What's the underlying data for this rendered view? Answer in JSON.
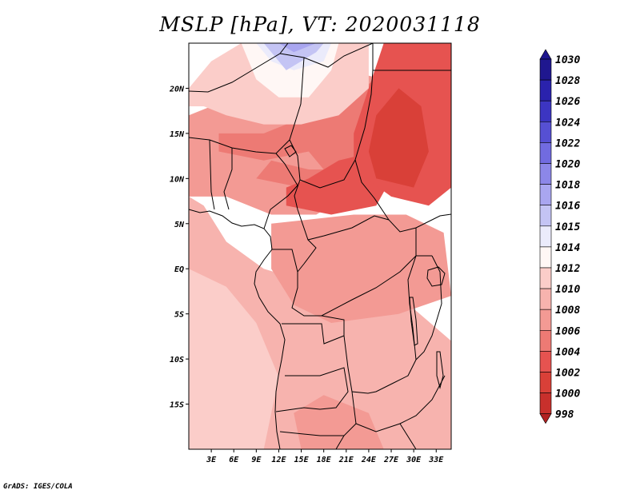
{
  "title": "MSLP [hPa], VT: 2020031118",
  "credit": "GrADS: IGES/COLA",
  "colors": {
    "998": "#b22222",
    "1000": "#c8302c",
    "1002": "#d94038",
    "1004": "#e65350",
    "1006": "#ed7a74",
    "1008": "#f39a94",
    "1010": "#f7b3ae",
    "1012": "#fbcdc9",
    "1014": "#fff7f5",
    "1015": "#ebebfb",
    "1016": "#c4c4f4",
    "1018": "#a9a6f0",
    "1020": "#8c87e8",
    "1022": "#716be0",
    "1024": "#5650d3",
    "1026": "#3c35c2",
    "1028": "#2a22ad",
    "1030": "#1f178f"
  },
  "chart_data": {
    "type": "heatmap",
    "title": "MSLP [hPa], VT: 2020031118",
    "variable": "MSLP",
    "units": "hPa",
    "valid_time": "2020031118",
    "lon_range": [
      0,
      35
    ],
    "lat_range": [
      -20,
      25
    ],
    "lat_ticks": [
      "20N",
      "15N",
      "10N",
      "5N",
      "EQ",
      "5S",
      "10S",
      "15S"
    ],
    "lon_ticks": [
      "3E",
      "6E",
      "9E",
      "12E",
      "15E",
      "18E",
      "21E",
      "24E",
      "27E",
      "30E",
      "33E"
    ],
    "colorbar_levels": [
      "1030",
      "1028",
      "1026",
      "1024",
      "1022",
      "1020",
      "1018",
      "1016",
      "1015",
      "1014",
      "1012",
      "1010",
      "1008",
      "1006",
      "1004",
      "1002",
      "1000",
      "998"
    ],
    "regions": [
      {
        "name": "southern-background",
        "level": 1010,
        "points": [
          [
            0,
            -20
          ],
          [
            35,
            -20
          ],
          [
            35,
            -8
          ],
          [
            28,
            -3
          ],
          [
            18,
            -2
          ],
          [
            10,
            0
          ],
          [
            5,
            3
          ],
          [
            2,
            7
          ],
          [
            0,
            8
          ]
        ]
      },
      {
        "name": "southwest-coast",
        "level": 1012,
        "points": [
          [
            0,
            -20
          ],
          [
            10,
            -20
          ],
          [
            12,
            -12
          ],
          [
            9,
            -6
          ],
          [
            5,
            -2
          ],
          [
            0,
            0
          ]
        ]
      },
      {
        "name": "namibia-interior",
        "level": 1008,
        "points": [
          [
            15,
            -20
          ],
          [
            26,
            -20
          ],
          [
            24,
            -16
          ],
          [
            18,
            -14
          ],
          [
            14,
            -16
          ]
        ]
      },
      {
        "name": "congo-basin",
        "level": 1008,
        "points": [
          [
            11,
            5
          ],
          [
            22,
            6
          ],
          [
            29,
            6
          ],
          [
            34,
            4
          ],
          [
            35,
            -3
          ],
          [
            28,
            -5
          ],
          [
            19,
            -6
          ],
          [
            14,
            -4
          ],
          [
            11,
            0
          ]
        ]
      },
      {
        "name": "west-africa",
        "level": 1008,
        "points": [
          [
            0,
            8
          ],
          [
            5,
            8
          ],
          [
            11,
            6
          ],
          [
            17,
            6
          ],
          [
            21,
            8
          ],
          [
            24,
            13
          ],
          [
            26,
            17
          ],
          [
            26,
            21
          ],
          [
            21,
            22
          ],
          [
            15,
            19
          ],
          [
            9,
            18
          ],
          [
            3,
            18
          ],
          [
            0,
            17
          ]
        ]
      },
      {
        "name": "sahel-band",
        "level": 1006,
        "points": [
          [
            4,
            13
          ],
          [
            10,
            12
          ],
          [
            16,
            13
          ],
          [
            20,
            9
          ],
          [
            23,
            12
          ],
          [
            26,
            16
          ],
          [
            27,
            20
          ],
          [
            25,
            21
          ],
          [
            21,
            19
          ],
          [
            16,
            17
          ],
          [
            10,
            15
          ],
          [
            4,
            15
          ]
        ]
      },
      {
        "name": "nigeria-chad",
        "level": 1006,
        "points": [
          [
            9,
            10
          ],
          [
            15,
            9
          ],
          [
            20,
            8
          ],
          [
            24,
            7
          ],
          [
            22,
            11
          ],
          [
            16,
            11
          ],
          [
            11,
            12
          ]
        ]
      },
      {
        "name": "car-south-sudan",
        "level": 1004,
        "points": [
          [
            13,
            7
          ],
          [
            19,
            6
          ],
          [
            25,
            7
          ],
          [
            27,
            10
          ],
          [
            25,
            13
          ],
          [
            20,
            12
          ],
          [
            16,
            10
          ],
          [
            13,
            9
          ]
        ]
      },
      {
        "name": "sudan",
        "level": 1004,
        "points": [
          [
            22,
            11
          ],
          [
            27,
            8
          ],
          [
            32,
            7
          ],
          [
            35,
            9
          ],
          [
            35,
            25
          ],
          [
            26,
            25
          ],
          [
            24,
            20
          ],
          [
            22,
            15
          ]
        ]
      },
      {
        "name": "sudan-core",
        "level": 1002,
        "points": [
          [
            25,
            10
          ],
          [
            30,
            9
          ],
          [
            32,
            13
          ],
          [
            31,
            18
          ],
          [
            28,
            20
          ],
          [
            25,
            17
          ],
          [
            24,
            13
          ]
        ]
      },
      {
        "name": "north-high-outer",
        "level": 1012,
        "points": [
          [
            0,
            20
          ],
          [
            3,
            23
          ],
          [
            7,
            25
          ],
          [
            24,
            25
          ],
          [
            24,
            20
          ],
          [
            20,
            17
          ],
          [
            15,
            16
          ],
          [
            10,
            16
          ],
          [
            5,
            17
          ],
          [
            2,
            18
          ],
          [
            0,
            18
          ]
        ]
      },
      {
        "name": "north-high-1014",
        "level": 1014,
        "points": [
          [
            7,
            25
          ],
          [
            20,
            25
          ],
          [
            19,
            22
          ],
          [
            16,
            19
          ],
          [
            12,
            19
          ],
          [
            9,
            21
          ]
        ]
      },
      {
        "name": "north-high-1015",
        "level": 1015,
        "points": [
          [
            9,
            25
          ],
          [
            19,
            25
          ],
          [
            18,
            23
          ],
          [
            14,
            22
          ],
          [
            11,
            23
          ]
        ]
      },
      {
        "name": "north-high-1016",
        "level": 1016,
        "points": [
          [
            10,
            25
          ],
          [
            18,
            25
          ],
          [
            17,
            24
          ],
          [
            13,
            22
          ],
          [
            11,
            24
          ]
        ]
      },
      {
        "name": "north-high-1018",
        "level": 1018,
        "points": [
          [
            12,
            25
          ],
          [
            17,
            25
          ],
          [
            14,
            24
          ]
        ]
      }
    ]
  }
}
